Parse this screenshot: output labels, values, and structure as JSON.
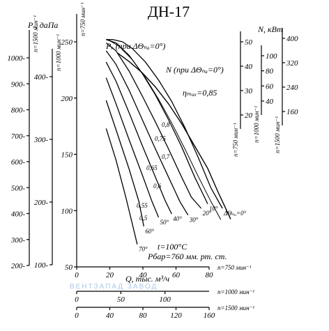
{
  "chart_data": {
    "type": "line",
    "title": "ДН-17",
    "pressure_axes": [
      {
        "label": "Pᵥ, даПа",
        "sublabel": "n=1500 мин⁻¹",
        "ticks": [
          "1000-",
          "900-",
          "800-",
          "700-",
          "600-",
          "500-",
          "400-",
          "300-",
          "200-"
        ]
      },
      {
        "label": "",
        "sublabel": "n=1000 мин⁻¹",
        "ticks": [
          "400-",
          "300-",
          "200-",
          "100-"
        ]
      },
      {
        "label": "",
        "sublabel": "n=750 мин⁻¹",
        "ticks": [
          "250",
          "200",
          "150",
          "100",
          "50"
        ],
        "range": [
          50,
          250
        ]
      }
    ],
    "power_axes": [
      {
        "label": "N, кВт",
        "sublabel": "n=750 мин⁻¹",
        "ticks": [
          "50",
          "40",
          "30",
          "20"
        ],
        "range": [
          15,
          50
        ]
      },
      {
        "label": "",
        "sublabel": "n=1000 мин⁻¹",
        "ticks": [
          "100",
          "80",
          "60",
          "40"
        ]
      },
      {
        "label": "",
        "sublabel": "n=1500 мин⁻¹",
        "ticks": [
          "400",
          "320",
          "240",
          "160"
        ]
      }
    ],
    "flow_axes": [
      {
        "sublabel": "n=750 мин⁻¹",
        "ticks": [
          "0",
          "20",
          "40",
          "60",
          "80"
        ],
        "range": [
          0,
          100
        ]
      },
      {
        "sublabel": "n=1000 мин⁻¹",
        "ticks": [
          "0",
          "50",
          "100"
        ]
      },
      {
        "sublabel": "n=1500 мин⁻¹",
        "ticks": [
          "0",
          "40",
          "80",
          "120",
          "160"
        ]
      }
    ],
    "flow_label": "Q, тыс. м³/ч",
    "curve_labels": {
      "pressure": "Pᵥ (при ΔΘₙₐ=0°)",
      "power": "N (при ΔΘₙₐ=0°)",
      "efficiency_max": "ηₘₐₓ=0,85"
    },
    "conditions": [
      "t=100°C",
      "Pбар=760 мм. рт. ст."
    ],
    "vane_angles": [
      "ΔΘₙₐ=0°",
      "10°",
      "20°",
      "30°",
      "40°",
      "50°",
      "60°",
      "70°"
    ],
    "efficiency_labels": [
      "0,8",
      "0,75",
      "0,7",
      "0,65",
      "0,6",
      "0,55",
      "0,5"
    ],
    "series": [
      {
        "name": "0°",
        "x": [
          18,
          22,
          28,
          34,
          42,
          50,
          58,
          66,
          74,
          82,
          89
        ],
        "y": [
          252,
          252,
          250,
          244,
          232,
          216,
          197,
          174,
          148,
          120,
          102
        ]
      },
      {
        "name": "10°",
        "x": [
          18,
          24,
          32,
          40,
          48,
          56,
          64,
          72,
          80
        ],
        "y": [
          252,
          249,
          238,
          222,
          203,
          181,
          157,
          130,
          106
        ]
      },
      {
        "name": "20°",
        "x": [
          18,
          24,
          32,
          40,
          48,
          56,
          64,
          70,
          76
        ],
        "y": [
          249,
          242,
          224,
          202,
          179,
          155,
          130,
          112,
          102
        ]
      },
      {
        "name": "30°",
        "x": [
          18,
          24,
          32,
          40,
          48,
          56,
          63,
          68
        ],
        "y": [
          242,
          230,
          207,
          181,
          155,
          130,
          108,
          96
        ]
      },
      {
        "name": "40°",
        "x": [
          18,
          24,
          32,
          40,
          48,
          54,
          58
        ],
        "y": [
          232,
          215,
          187,
          158,
          130,
          109,
          97
        ]
      },
      {
        "name": "50°",
        "x": [
          18,
          24,
          32,
          40,
          46,
          50
        ],
        "y": [
          218,
          195,
          163,
          132,
          108,
          94
        ]
      },
      {
        "name": "60°",
        "x": [
          18,
          24,
          32,
          38,
          41
        ],
        "y": [
          198,
          172,
          137,
          108,
          86
        ]
      },
      {
        "name": "70°",
        "x": [
          18,
          24,
          30,
          34,
          37
        ],
        "y": [
          173,
          145,
          112,
          88,
          70
        ]
      }
    ],
    "power_curve": {
      "x": [
        25,
        32,
        40,
        48,
        56,
        64,
        72,
        80,
        86,
        90,
        94
      ],
      "y": [
        48,
        46.5,
        44.5,
        42,
        39,
        35.5,
        31.5,
        27.5,
        23.5,
        21,
        18.5
      ],
      "axis": "power"
    },
    "efficiency_max_curve": {
      "x": [
        19,
        26,
        34,
        42,
        50,
        58,
        66,
        74,
        82,
        88
      ],
      "y": [
        252,
        246,
        234,
        218,
        199,
        178,
        155,
        131,
        108,
        92
      ]
    },
    "grid": false
  },
  "watermark": "ВЕНТЗАПАД ЗАВОД"
}
